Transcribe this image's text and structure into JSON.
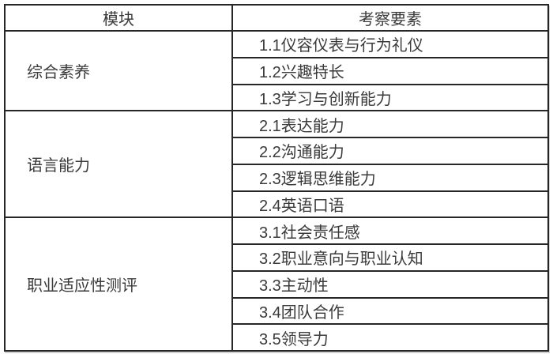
{
  "table": {
    "headers": [
      "模块",
      "考察要素"
    ],
    "groups": [
      {
        "module": "综合素养",
        "elements": [
          "1.1仪容仪表与行为礼仪",
          "1.2兴趣特长",
          "1.3学习与创新能力"
        ]
      },
      {
        "module": "语言能力",
        "elements": [
          "2.1表达能力",
          "2.2沟通能力",
          "2.3逻辑思维能力",
          "2.4英语口语"
        ]
      },
      {
        "module": "职业适应性测评",
        "elements": [
          "3.1社会责任感",
          "3.2职业意向与职业认知",
          "3.3主动性",
          "3.4团队合作",
          "3.5领导力"
        ]
      }
    ],
    "colors": {
      "border": "#262626",
      "text": "#3a3a3a",
      "background": "#ffffff"
    }
  },
  "chart_data": {
    "type": "table",
    "title": "",
    "columns": [
      "模块",
      "考察要素"
    ],
    "rows": [
      [
        "综合素养",
        "1.1仪容仪表与行为礼仪"
      ],
      [
        "综合素养",
        "1.2兴趣特长"
      ],
      [
        "综合素养",
        "1.3学习与创新能力"
      ],
      [
        "语言能力",
        "2.1表达能力"
      ],
      [
        "语言能力",
        "2.2沟通能力"
      ],
      [
        "语言能力",
        "2.3逻辑思维能力"
      ],
      [
        "语言能力",
        "2.4英语口语"
      ],
      [
        "职业适应性测评",
        "3.1社会责任感"
      ],
      [
        "职业适应性测评",
        "3.2职业意向与职业认知"
      ],
      [
        "职业适应性测评",
        "3.3主动性"
      ],
      [
        "职业适应性测评",
        "3.4团队合作"
      ],
      [
        "职业适应性测评",
        "3.5领导力"
      ]
    ],
    "layout_hints": {
      "merged_first_column": true,
      "header_align": "center",
      "body_align": "left",
      "grid": true
    }
  }
}
